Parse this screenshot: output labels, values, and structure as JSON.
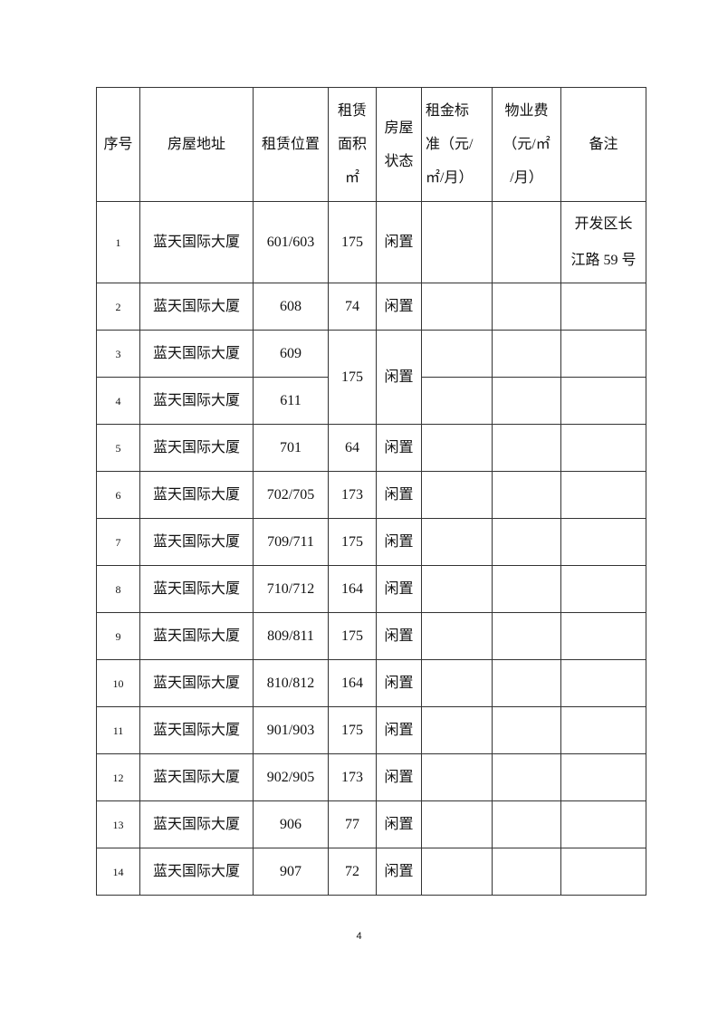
{
  "table": {
    "headers": [
      {
        "lines": [
          "序号"
        ]
      },
      {
        "lines": [
          "房屋地址"
        ]
      },
      {
        "lines": [
          "租赁位置"
        ]
      },
      {
        "lines": [
          "租赁",
          "面积",
          "㎡"
        ]
      },
      {
        "lines": [
          "房屋",
          "状态"
        ]
      },
      {
        "lines": [
          "租金标",
          "准（元/",
          "㎡/月）"
        ],
        "align": "left"
      },
      {
        "lines": [
          "物业费",
          "（元/㎡",
          "/月）"
        ]
      },
      {
        "lines": [
          "备注"
        ]
      }
    ],
    "rows": [
      {
        "no": "1",
        "address": "蓝天国际大厦",
        "location": "601/603",
        "area": "175",
        "status": "闲置",
        "rent": "",
        "fee": "",
        "note": [
          "开发区长",
          "江路 59 号"
        ]
      },
      {
        "no": "2",
        "address": "蓝天国际大厦",
        "location": "608",
        "area": "74",
        "status": "闲置",
        "rent": "",
        "fee": "",
        "note": []
      },
      {
        "no": "3",
        "address": "蓝天国际大厦",
        "location": "609",
        "area": "175",
        "status": "闲置",
        "rent": "",
        "fee": "",
        "note": [],
        "merge_area_status_rows": 2
      },
      {
        "no": "4",
        "address": "蓝天国际大厦",
        "location": "611",
        "rent": "",
        "fee": "",
        "note": []
      },
      {
        "no": "5",
        "address": "蓝天国际大厦",
        "location": "701",
        "area": "64",
        "status": "闲置",
        "rent": "",
        "fee": "",
        "note": []
      },
      {
        "no": "6",
        "address": "蓝天国际大厦",
        "location": "702/705",
        "area": "173",
        "status": "闲置",
        "rent": "",
        "fee": "",
        "note": []
      },
      {
        "no": "7",
        "address": "蓝天国际大厦",
        "location": "709/711",
        "area": "175",
        "status": "闲置",
        "rent": "",
        "fee": "",
        "note": []
      },
      {
        "no": "8",
        "address": "蓝天国际大厦",
        "location": "710/712",
        "area": "164",
        "status": "闲置",
        "rent": "",
        "fee": "",
        "note": []
      },
      {
        "no": "9",
        "address": "蓝天国际大厦",
        "location": "809/811",
        "area": "175",
        "status": "闲置",
        "rent": "",
        "fee": "",
        "note": []
      },
      {
        "no": "10",
        "address": "蓝天国际大厦",
        "location": "810/812",
        "area": "164",
        "status": "闲置",
        "rent": "",
        "fee": "",
        "note": []
      },
      {
        "no": "11",
        "address": "蓝天国际大厦",
        "location": "901/903",
        "area": "175",
        "status": "闲置",
        "rent": "",
        "fee": "",
        "note": []
      },
      {
        "no": "12",
        "address": "蓝天国际大厦",
        "location": "902/905",
        "area": "173",
        "status": "闲置",
        "rent": "",
        "fee": "",
        "note": []
      },
      {
        "no": "13",
        "address": "蓝天国际大厦",
        "location": "906",
        "area": "77",
        "status": "闲置",
        "rent": "",
        "fee": "",
        "note": []
      },
      {
        "no": "14",
        "address": "蓝天国际大厦",
        "location": "907",
        "area": "72",
        "status": "闲置",
        "rent": "",
        "fee": "",
        "note": []
      }
    ]
  },
  "page_number": "4"
}
